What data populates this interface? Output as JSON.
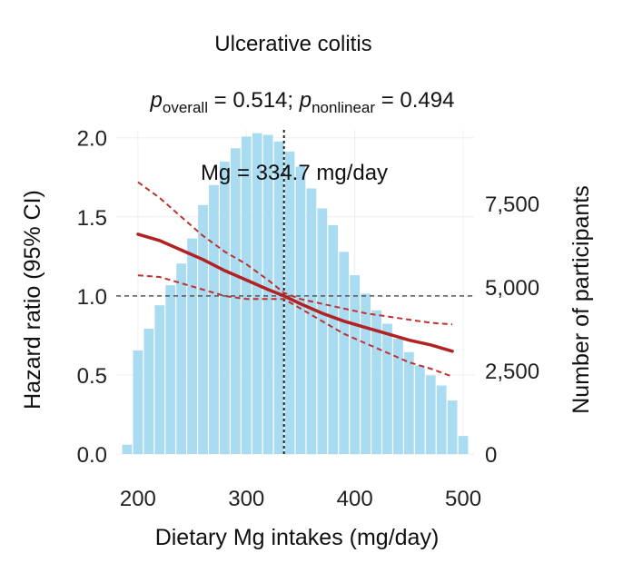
{
  "chart_data": {
    "type": "bar",
    "title": "Ulcerative colitis",
    "subtitle": {
      "p_overall_label": "p",
      "p_overall_sub": "overall",
      "p_overall_value": " = 0.514; ",
      "p_nonlinear_label": "p",
      "p_nonlinear_sub": "nonlinear",
      "p_nonlinear_value": " = 0.494"
    },
    "annotation": "Mg = 334.7 mg/day",
    "reference_x": 334.7,
    "reference_y": 1.0,
    "xlabel": "Dietary Mg intakes (mg/day)",
    "ylabel_left": "Hazard ratio (95% CI)",
    "ylabel_right": "Number of participants",
    "xlim": [
      180,
      510
    ],
    "ylim_left": [
      0,
      2.05
    ],
    "ylim_right": [
      0,
      9700
    ],
    "x_ticks": [
      200,
      300,
      400,
      500
    ],
    "x_tick_labels": [
      "200",
      "300",
      "400",
      "500"
    ],
    "y_left_ticks": [
      0,
      0.5,
      1.0,
      1.5,
      2.0
    ],
    "y_left_tick_labels": [
      "0.0",
      "0.5",
      "1.0",
      "1.5",
      "2.0"
    ],
    "y_right_ticks": [
      0,
      2500,
      5000,
      7500
    ],
    "y_right_tick_labels": [
      "0",
      "2,500",
      "5,000",
      "7,500"
    ],
    "histogram": {
      "name": "Number of participants",
      "bin_width": 10,
      "bin_start": 185,
      "counts": [
        280,
        3100,
        3750,
        4450,
        5050,
        5700,
        6450,
        7450,
        8050,
        8750,
        9150,
        9500,
        9600,
        9550,
        9350,
        9050,
        8600,
        7950,
        7350,
        6850,
        6050,
        5350,
        4800,
        4300,
        3900,
        3450,
        3050,
        2650,
        2350,
        2050,
        1600,
        540
      ]
    },
    "series": [
      {
        "name": "Hazard ratio",
        "x": [
          200,
          220,
          240,
          260,
          280,
          300,
          320,
          334.7,
          350,
          370,
          390,
          410,
          430,
          450,
          470,
          490
        ],
        "values": [
          1.39,
          1.35,
          1.29,
          1.23,
          1.16,
          1.1,
          1.04,
          1.0,
          0.95,
          0.89,
          0.84,
          0.8,
          0.76,
          0.72,
          0.69,
          0.65
        ]
      },
      {
        "name": "Upper 95% CI",
        "x": [
          200,
          220,
          240,
          260,
          280,
          300,
          320,
          334.7,
          350,
          370,
          390,
          410,
          430,
          450,
          470,
          490
        ],
        "values": [
          1.72,
          1.62,
          1.5,
          1.38,
          1.28,
          1.2,
          1.1,
          1.02,
          0.98,
          0.95,
          0.92,
          0.89,
          0.87,
          0.85,
          0.83,
          0.82
        ]
      },
      {
        "name": "Lower 95% CI",
        "x": [
          200,
          220,
          240,
          260,
          280,
          300,
          320,
          334.7,
          350,
          370,
          390,
          410,
          430,
          450,
          470,
          490
        ],
        "values": [
          1.13,
          1.12,
          1.08,
          1.04,
          1.0,
          0.98,
          0.98,
          0.98,
          0.92,
          0.84,
          0.76,
          0.7,
          0.64,
          0.58,
          0.54,
          0.49
        ]
      }
    ],
    "colors": {
      "bars": "#a9dbf1",
      "curve": "#b22222",
      "ci": "#c03030",
      "reference": "#555555",
      "grid": "#eeeeee"
    }
  }
}
